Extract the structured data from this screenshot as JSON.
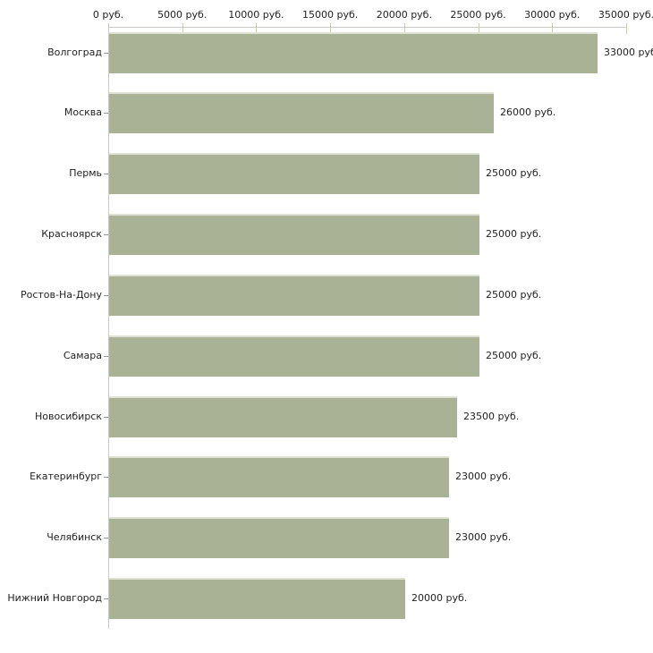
{
  "chart_data": {
    "type": "bar",
    "orientation": "horizontal",
    "title": "",
    "xlabel": "",
    "ylabel": "",
    "xlim": [
      0,
      35000
    ],
    "grid": false,
    "legend": "none",
    "categories": [
      "Волгоград",
      "Москва",
      "Пермь",
      "Красноярск",
      "Ростов-На-Дону",
      "Самара",
      "Новосибирск",
      "Екатеринбург",
      "Челябинск",
      "Нижний Новгород"
    ],
    "values": [
      33000,
      26000,
      25000,
      25000,
      25000,
      25000,
      23500,
      23000,
      23000,
      20000
    ],
    "value_labels": [
      "33000 руб",
      "26000 руб.",
      "25000 руб.",
      "25000 руб.",
      "25000 руб.",
      "25000 руб.",
      "23500 руб.",
      "23000 руб.",
      "23000 руб.",
      "20000 руб."
    ],
    "x_tick_values": [
      0,
      5000,
      10000,
      15000,
      20000,
      25000,
      30000,
      35000
    ],
    "x_tick_labels": [
      "0 руб.",
      "5000 руб.",
      "10000 руб.",
      "15000 руб.",
      "20000 руб.",
      "25000 руб.",
      "30000 руб.",
      "35000 руб."
    ],
    "colors": {
      "bar_fill": "#a9b295",
      "bar_top_edge": "#dee1d3",
      "axis_line": "#c9cbc3",
      "x_tick": "#cdcf9e",
      "y_tick": "#999999",
      "text": "#1f1f1f",
      "background": "#ffffff"
    }
  }
}
